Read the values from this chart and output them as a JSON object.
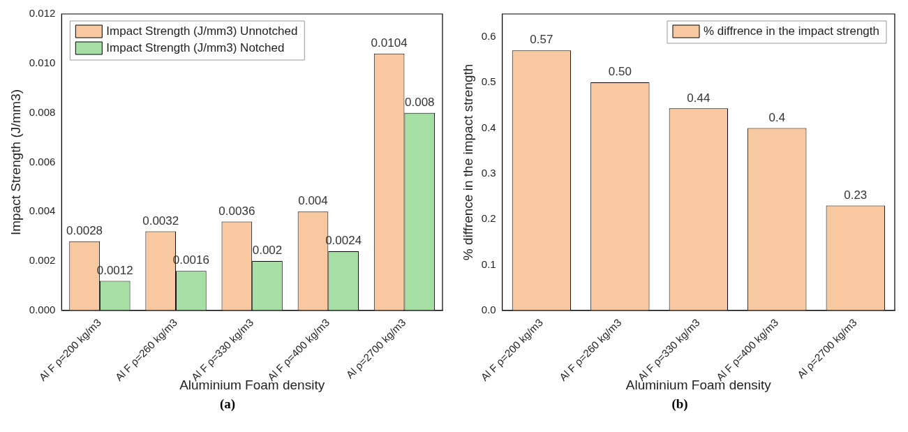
{
  "chart_data": [
    {
      "type": "bar",
      "xlabel": "Aluminium Foam density",
      "ylabel": "Impact Strength (J/mm3)",
      "categories": [
        "Al F ρ=200 kg/m3",
        "Al F ρ=260 kg/m3",
        "Al F ρ=330 kg/m3",
        "Al F ρ=400 kg/m3",
        "Al ρ=2700 kg/m3"
      ],
      "series": [
        {
          "name": "Impact Strength (J/mm3) Unnotched",
          "color": "#f8c9a0",
          "values": [
            0.0028,
            0.0032,
            0.0036,
            0.004,
            0.0104
          ]
        },
        {
          "name": "Impact Strength (J/mm3) Notched",
          "color": "#a6dfa3",
          "values": [
            0.0012,
            0.0016,
            0.002,
            0.0024,
            0.008
          ]
        }
      ],
      "ylim": [
        0,
        0.012
      ],
      "yticks": [
        {
          "value": 0,
          "label": "0.000"
        },
        {
          "value": 0.002,
          "label": "0.002"
        },
        {
          "value": 0.004,
          "label": "0.004"
        },
        {
          "value": 0.006,
          "label": "0.006"
        },
        {
          "value": 0.008,
          "label": "0.008"
        },
        {
          "value": 0.01,
          "label": "0.010"
        },
        {
          "value": 0.012,
          "label": "0.012"
        }
      ],
      "data_labels": true,
      "grid": false,
      "legend": "top left",
      "annotations": [
        "(a)"
      ]
    },
    {
      "type": "bar",
      "xlabel": "Aluminium Foam density",
      "ylabel": "% diffrence in the impact strength",
      "categories": [
        "Al F ρ=200 kg/m3",
        "Al F ρ=260 kg/m3",
        "Al F ρ=330 kg/m3",
        "Al F ρ=400 kg/m3",
        "Al ρ=2700 kg/m3"
      ],
      "series": [
        {
          "name": "% diffrence in the impact strength",
          "color": "#f8c9a0",
          "values": [
            0.57,
            0.5,
            0.443,
            0.4,
            0.23
          ],
          "value_labels": [
            "0.57",
            "0.50",
            "0.44",
            "0.4",
            "0.23"
          ]
        }
      ],
      "ylim": [
        0,
        0.65
      ],
      "yticks": [
        {
          "value": 0,
          "label": "0.0"
        },
        {
          "value": 0.1,
          "label": "0.1"
        },
        {
          "value": 0.2,
          "label": "0.2"
        },
        {
          "value": 0.3,
          "label": "0.3"
        },
        {
          "value": 0.4,
          "label": "0.4"
        },
        {
          "value": 0.5,
          "label": "0.5"
        },
        {
          "value": 0.6,
          "label": "0.6"
        }
      ],
      "grid": false,
      "legend": "top right",
      "annotations": [
        "(b)"
      ]
    }
  ]
}
